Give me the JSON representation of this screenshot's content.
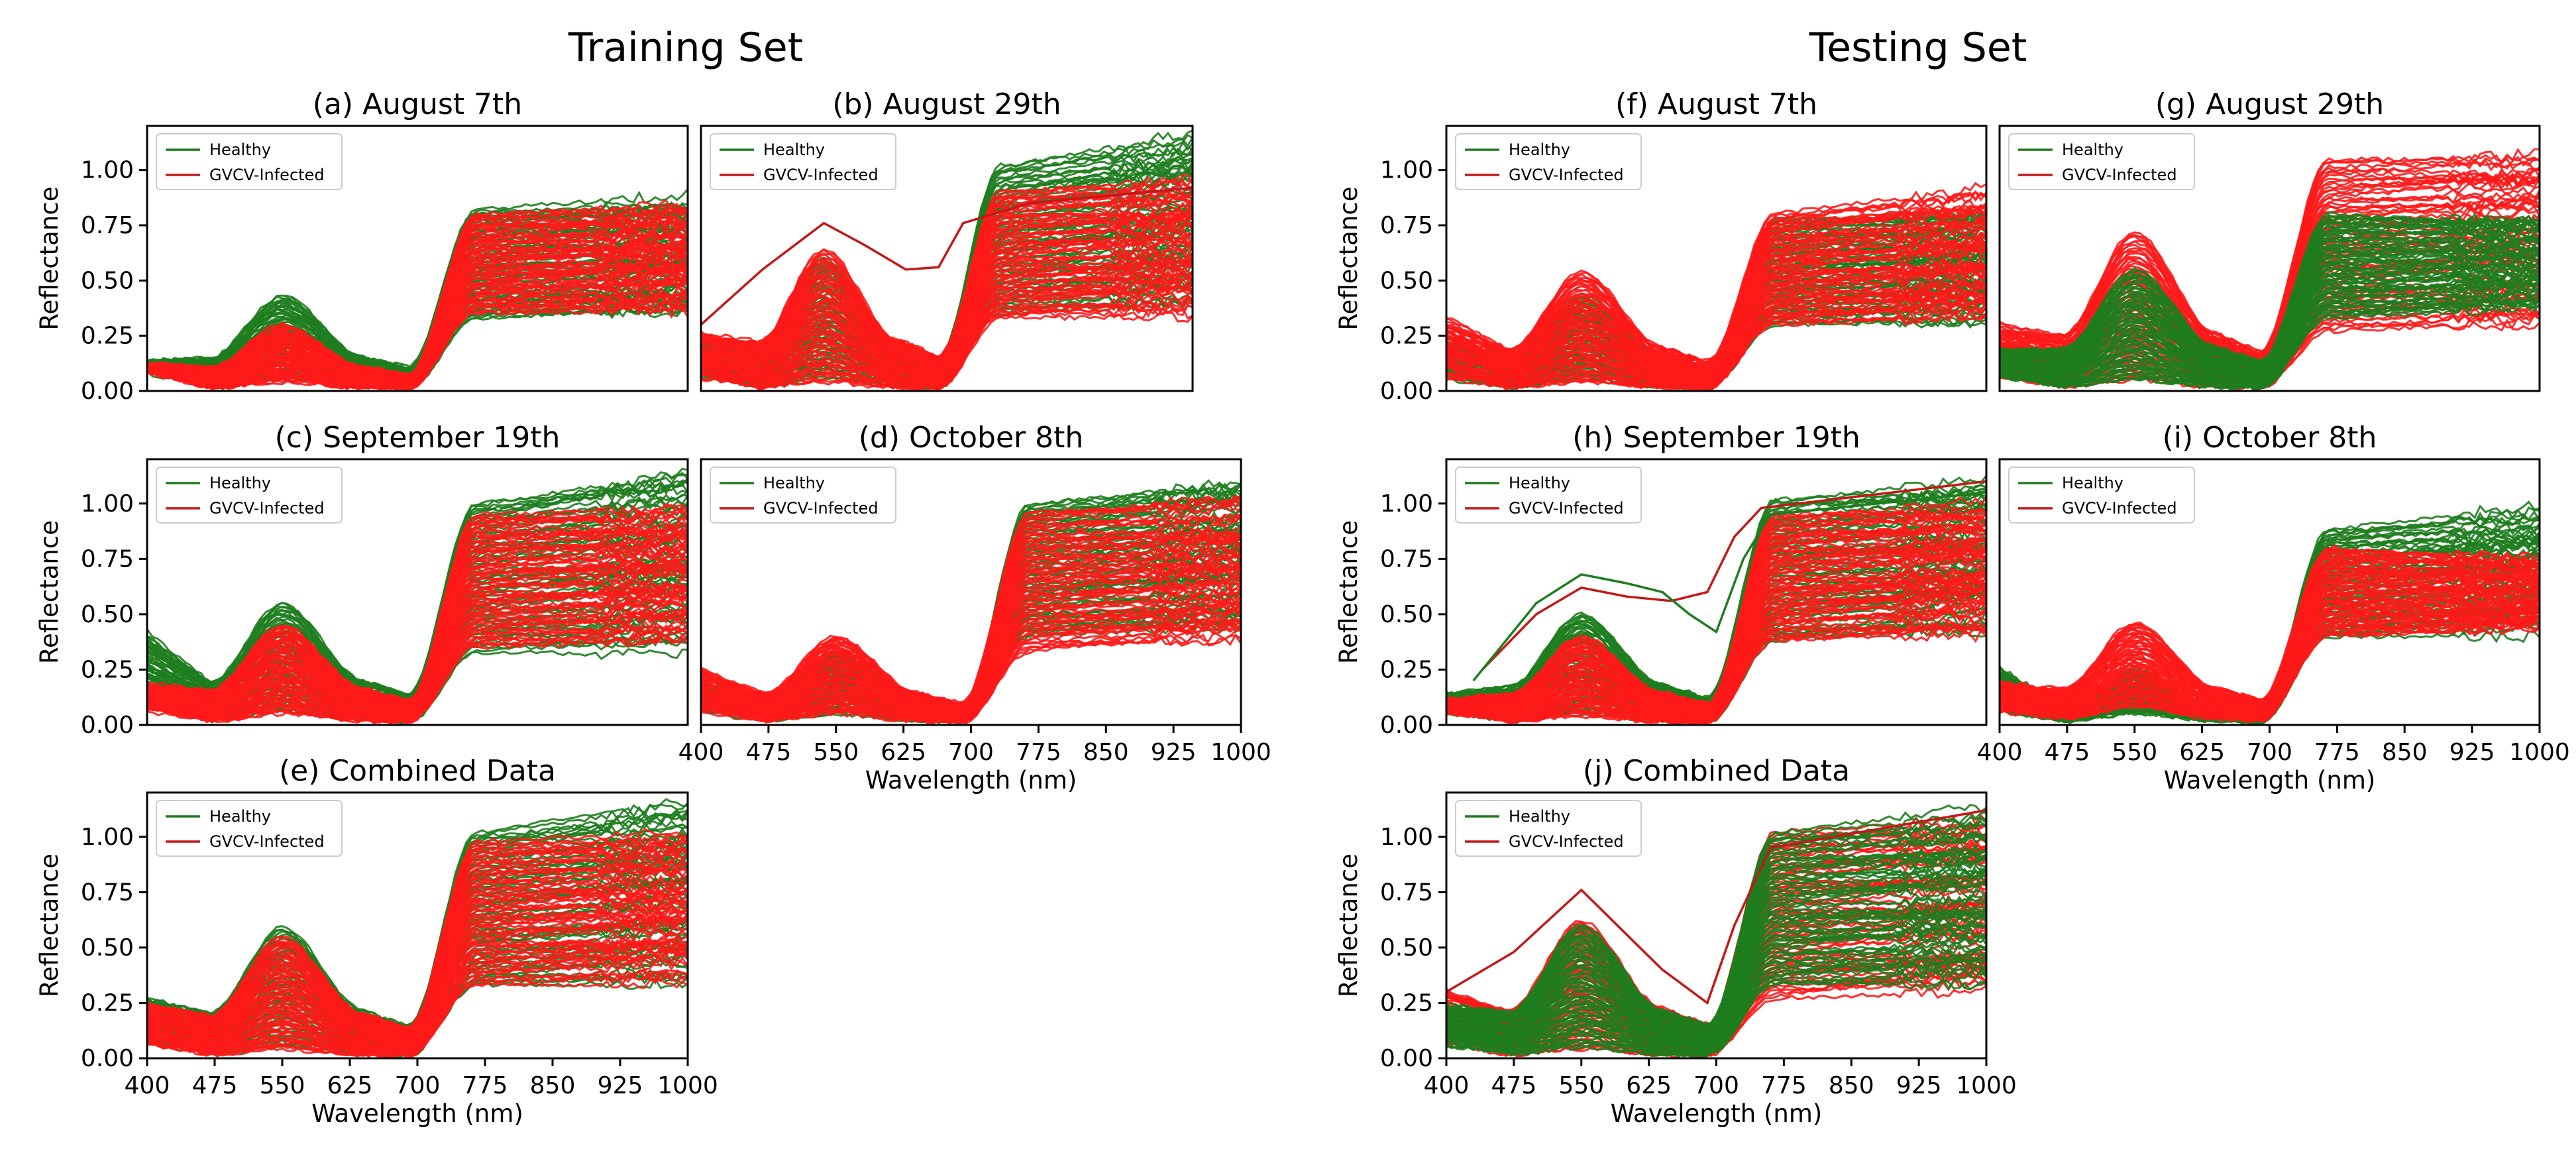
{
  "groups": [
    {
      "title": "Training Set"
    },
    {
      "title": "Testing Set"
    }
  ],
  "colors": {
    "healthy": "#1e7d1e",
    "infected_dense": "#ff1a1a",
    "infected_line": "#c41818"
  },
  "chart_data": [
    {
      "id": "a",
      "group": 0,
      "type": "line",
      "title": "(a) August 7th",
      "xlabel": "",
      "ylabel": "Reflectance",
      "xlim": [
        400,
        1000
      ],
      "ylim": [
        0,
        1.2
      ],
      "xticks": [],
      "yticks": [
        0,
        0.25,
        0.5,
        0.75,
        1.0
      ],
      "yticklabels": [
        "0.00",
        "0.25",
        "0.50",
        "0.75",
        "1.00"
      ],
      "legend": [
        "Healthy",
        "GVCV-Infected"
      ],
      "series": [
        {
          "name": "Healthy",
          "color": "healthy",
          "peak_550_range": [
            0.05,
            0.43
          ],
          "nir_range": [
            0.33,
            0.82
          ],
          "vis_start_range": [
            0.08,
            0.14
          ],
          "nir_end_range": [
            0.3,
            0.92
          ]
        },
        {
          "name": "GVCV-Infected",
          "color": "infected_dense",
          "peak_550_range": [
            0.04,
            0.3
          ],
          "nir_range": [
            0.35,
            0.8
          ],
          "vis_start_range": [
            0.08,
            0.13
          ],
          "nir_end_range": [
            0.35,
            0.86
          ]
        }
      ]
    },
    {
      "id": "b",
      "group": 0,
      "type": "line",
      "title": "(b) August 29th",
      "xlabel": "",
      "ylabel": "",
      "xlim": [
        400,
        1000
      ],
      "ylim": [
        0,
        1.2
      ],
      "xticks": [],
      "yticks": [],
      "legend": [
        "Healthy",
        "GVCV-Infected"
      ],
      "series": [
        {
          "name": "Healthy",
          "color": "healthy",
          "peak_550_range": [
            0.06,
            0.6
          ],
          "nir_range": [
            0.35,
            1.02
          ],
          "vis_start_range": [
            0.05,
            0.25
          ],
          "nir_end_range": [
            0.35,
            1.2
          ]
        },
        {
          "name": "GVCV-Infected",
          "color": "infected_dense",
          "peak_550_range": [
            0.04,
            0.64
          ],
          "nir_range": [
            0.33,
            0.9
          ],
          "vis_start_range": [
            0.05,
            0.27
          ],
          "nir_end_range": [
            0.33,
            0.98
          ]
        },
        {
          "name": "GVCV-Infected outlier",
          "color": "infected_line",
          "outlier": [
            [
              400,
              0.3
            ],
            [
              475,
              0.55
            ],
            [
              550,
              0.76
            ],
            [
              600,
              0.66
            ],
            [
              650,
              0.55
            ],
            [
              690,
              0.56
            ],
            [
              720,
              0.76
            ],
            [
              800,
              0.85
            ],
            [
              1000,
              0.92
            ]
          ]
        }
      ]
    },
    {
      "id": "c",
      "group": 0,
      "type": "line",
      "title": "(c) September 19th",
      "xlabel": "",
      "ylabel": "Reflectance",
      "xlim": [
        400,
        1000
      ],
      "ylim": [
        0,
        1.2
      ],
      "xticks": [],
      "yticks": [
        0,
        0.25,
        0.5,
        0.75,
        1.0
      ],
      "yticklabels": [
        "0.00",
        "0.25",
        "0.50",
        "0.75",
        "1.00"
      ],
      "legend": [
        "Healthy",
        "GVCV-Infected"
      ],
      "series": [
        {
          "name": "Healthy",
          "color": "healthy",
          "peak_550_range": [
            0.06,
            0.55
          ],
          "nir_range": [
            0.33,
            1.0
          ],
          "vis_start_range": [
            0.05,
            0.43
          ],
          "nir_end_range": [
            0.3,
            1.2
          ]
        },
        {
          "name": "GVCV-Infected",
          "color": "infected_dense",
          "peak_550_range": [
            0.05,
            0.45
          ],
          "nir_range": [
            0.35,
            0.95
          ],
          "vis_start_range": [
            0.05,
            0.2
          ],
          "nir_end_range": [
            0.35,
            1.0
          ]
        }
      ]
    },
    {
      "id": "d",
      "group": 0,
      "type": "line",
      "title": "(d) October 8th",
      "xlabel": "Wavelength (nm)",
      "ylabel": "",
      "xlim": [
        400,
        1000
      ],
      "ylim": [
        0,
        1.2
      ],
      "xticks": [
        400,
        475,
        550,
        625,
        700,
        775,
        850,
        925,
        1000
      ],
      "xticklabels": [
        "400",
        "475",
        "550",
        "625",
        "700",
        "775",
        "850",
        "925",
        "1000"
      ],
      "yticks": [],
      "legend": [
        "Healthy",
        "GVCV-Infected"
      ],
      "series": [
        {
          "name": "Healthy",
          "color": "healthy",
          "peak_550_range": [
            0.05,
            0.33
          ],
          "nir_range": [
            0.4,
            1.0
          ],
          "vis_start_range": [
            0.05,
            0.2
          ],
          "nir_end_range": [
            0.4,
            1.15
          ]
        },
        {
          "name": "GVCV-Infected",
          "color": "infected_dense",
          "peak_550_range": [
            0.05,
            0.4
          ],
          "nir_range": [
            0.33,
            0.96
          ],
          "vis_start_range": [
            0.05,
            0.27
          ],
          "nir_end_range": [
            0.35,
            1.05
          ]
        }
      ]
    },
    {
      "id": "e",
      "group": 0,
      "type": "line",
      "title": "(e) Combined Data",
      "xlabel": "Wavelength (nm)",
      "ylabel": "Reflectance",
      "xlim": [
        400,
        1000
      ],
      "ylim": [
        0,
        1.2
      ],
      "xticks": [
        400,
        475,
        550,
        625,
        700,
        775,
        850,
        925,
        1000
      ],
      "xticklabels": [
        "400",
        "475",
        "550",
        "625",
        "700",
        "775",
        "850",
        "925",
        "1000"
      ],
      "yticks": [
        0,
        0.25,
        0.5,
        0.75,
        1.0
      ],
      "yticklabels": [
        "0.00",
        "0.25",
        "0.50",
        "0.75",
        "1.00"
      ],
      "legend": [
        "Healthy",
        "GVCV-Infected"
      ],
      "series": [
        {
          "name": "Healthy",
          "color": "healthy",
          "peak_550_range": [
            0.05,
            0.59
          ],
          "nir_range": [
            0.33,
            1.02
          ],
          "vis_start_range": [
            0.05,
            0.28
          ],
          "nir_end_range": [
            0.3,
            1.2
          ]
        },
        {
          "name": "GVCV-Infected",
          "color": "infected_dense",
          "peak_550_range": [
            0.04,
            0.55
          ],
          "nir_range": [
            0.33,
            0.98
          ],
          "vis_start_range": [
            0.05,
            0.27
          ],
          "nir_end_range": [
            0.33,
            1.05
          ]
        }
      ]
    },
    {
      "id": "f",
      "group": 1,
      "type": "line",
      "title": "(f) August 7th",
      "xlabel": "",
      "ylabel": "Reflectance",
      "xlim": [
        400,
        1000
      ],
      "ylim": [
        0,
        1.2
      ],
      "xticks": [],
      "yticks": [
        0,
        0.25,
        0.5,
        0.75,
        1.0
      ],
      "yticklabels": [
        "0.00",
        "0.25",
        "0.50",
        "0.75",
        "1.00"
      ],
      "legend": [
        "Healthy",
        "GVCV-Infected"
      ],
      "series": [
        {
          "name": "Healthy",
          "color": "healthy",
          "peak_550_range": [
            0.05,
            0.43
          ],
          "nir_range": [
            0.3,
            0.78
          ],
          "vis_start_range": [
            0.05,
            0.25
          ],
          "nir_end_range": [
            0.3,
            0.85
          ]
        },
        {
          "name": "GVCV-Infected",
          "color": "infected_dense",
          "peak_550_range": [
            0.04,
            0.54
          ],
          "nir_range": [
            0.3,
            0.8
          ],
          "vis_start_range": [
            0.05,
            0.35
          ],
          "nir_end_range": [
            0.3,
            0.93
          ]
        }
      ]
    },
    {
      "id": "g",
      "group": 1,
      "type": "line",
      "title": "(g) August 29th",
      "xlabel": "",
      "ylabel": "",
      "xlim": [
        400,
        1000
      ],
      "ylim": [
        0,
        1.2
      ],
      "xticks": [],
      "yticks": [],
      "legend": [
        "Healthy",
        "GVCV-Infected"
      ],
      "series": [
        {
          "name": "GVCV-Infected",
          "color": "infected_dense",
          "peak_550_range": [
            0.05,
            0.72
          ],
          "nir_range": [
            0.27,
            1.05
          ],
          "vis_start_range": [
            0.05,
            0.32
          ],
          "nir_end_range": [
            0.25,
            1.15
          ]
        },
        {
          "name": "Healthy",
          "color": "healthy",
          "peak_550_range": [
            0.05,
            0.55
          ],
          "nir_range": [
            0.33,
            0.8
          ],
          "vis_start_range": [
            0.05,
            0.2
          ],
          "nir_end_range": [
            0.35,
            0.82
          ]
        }
      ]
    },
    {
      "id": "h",
      "group": 1,
      "type": "line",
      "title": "(h) September 19th",
      "xlabel": "",
      "ylabel": "Reflectance",
      "xlim": [
        400,
        1000
      ],
      "ylim": [
        0,
        1.2
      ],
      "xticks": [],
      "yticks": [
        0,
        0.25,
        0.5,
        0.75,
        1.0
      ],
      "yticklabels": [
        "0.00",
        "0.25",
        "0.50",
        "0.75",
        "1.00"
      ],
      "legend": [
        "Healthy",
        "GVCV-Infected"
      ],
      "series": [
        {
          "name": "Healthy",
          "color": "healthy",
          "peak_550_range": [
            0.05,
            0.5
          ],
          "nir_range": [
            0.38,
            1.02
          ],
          "vis_start_range": [
            0.05,
            0.15
          ],
          "nir_end_range": [
            0.38,
            1.15
          ]
        },
        {
          "name": "GVCV-Infected",
          "color": "infected_dense",
          "peak_550_range": [
            0.04,
            0.4
          ],
          "nir_range": [
            0.38,
            0.95
          ],
          "vis_start_range": [
            0.05,
            0.12
          ],
          "nir_end_range": [
            0.38,
            1.05
          ]
        },
        {
          "name": "GVCV-Infected outlier",
          "color": "infected_line",
          "outlier": [
            [
              440,
              0.25
            ],
            [
              500,
              0.5
            ],
            [
              550,
              0.62
            ],
            [
              600,
              0.58
            ],
            [
              650,
              0.56
            ],
            [
              690,
              0.6
            ],
            [
              720,
              0.85
            ],
            [
              750,
              0.98
            ],
            [
              1000,
              1.1
            ]
          ]
        },
        {
          "name": "Healthy outlier",
          "color": "healthy",
          "outlier": [
            [
              430,
              0.2
            ],
            [
              500,
              0.55
            ],
            [
              550,
              0.68
            ],
            [
              600,
              0.64
            ],
            [
              640,
              0.6
            ],
            [
              670,
              0.5
            ],
            [
              700,
              0.42
            ],
            [
              730,
              0.75
            ],
            [
              760,
              0.95
            ],
            [
              1000,
              1.05
            ]
          ]
        }
      ]
    },
    {
      "id": "i",
      "group": 1,
      "type": "line",
      "title": "(i) October 8th",
      "xlabel": "Wavelength (nm)",
      "ylabel": "",
      "xlim": [
        400,
        1000
      ],
      "ylim": [
        0,
        1.2
      ],
      "xticks": [
        400,
        475,
        550,
        625,
        700,
        775,
        850,
        925,
        1000
      ],
      "xticklabels": [
        "400",
        "475",
        "550",
        "625",
        "700",
        "775",
        "850",
        "925",
        "1000"
      ],
      "yticks": [],
      "legend": [
        "Healthy",
        "GVCV-Infected"
      ],
      "series": [
        {
          "name": "Healthy",
          "color": "healthy",
          "peak_550_range": [
            0.05,
            0.25
          ],
          "nir_range": [
            0.4,
            0.88
          ],
          "vis_start_range": [
            0.05,
            0.27
          ],
          "nir_end_range": [
            0.4,
            1.0
          ]
        },
        {
          "name": "GVCV-Infected",
          "color": "infected_dense",
          "peak_550_range": [
            0.08,
            0.46
          ],
          "nir_range": [
            0.4,
            0.8
          ],
          "vis_start_range": [
            0.05,
            0.2
          ],
          "nir_end_range": [
            0.4,
            0.78
          ]
        }
      ]
    },
    {
      "id": "j",
      "group": 1,
      "type": "line",
      "title": "(j) Combined Data",
      "xlabel": "Wavelength (nm)",
      "ylabel": "Reflectance",
      "xlim": [
        400,
        1000
      ],
      "ylim": [
        0,
        1.2
      ],
      "xticks": [
        400,
        475,
        550,
        625,
        700,
        775,
        850,
        925,
        1000
      ],
      "xticklabels": [
        "400",
        "475",
        "550",
        "625",
        "700",
        "775",
        "850",
        "925",
        "1000"
      ],
      "yticks": [
        0,
        0.25,
        0.5,
        0.75,
        1.0
      ],
      "yticklabels": [
        "0.00",
        "0.25",
        "0.50",
        "0.75",
        "1.00"
      ],
      "legend": [
        "Healthy",
        "GVCV-Infected"
      ],
      "series": [
        {
          "name": "GVCV-Infected",
          "color": "infected_dense",
          "peak_550_range": [
            0.04,
            0.62
          ],
          "nir_range": [
            0.27,
            1.02
          ],
          "vis_start_range": [
            0.05,
            0.33
          ],
          "nir_end_range": [
            0.27,
            1.12
          ]
        },
        {
          "name": "Healthy",
          "color": "healthy",
          "peak_550_range": [
            0.05,
            0.6
          ],
          "nir_range": [
            0.33,
            1.02
          ],
          "vis_start_range": [
            0.05,
            0.25
          ],
          "nir_end_range": [
            0.3,
            1.15
          ]
        },
        {
          "name": "GVCV-Infected outlier",
          "color": "infected_line",
          "outlier": [
            [
              400,
              0.3
            ],
            [
              475,
              0.48
            ],
            [
              550,
              0.76
            ],
            [
              600,
              0.56
            ],
            [
              640,
              0.4
            ],
            [
              690,
              0.25
            ],
            [
              720,
              0.6
            ],
            [
              760,
              0.95
            ],
            [
              1000,
              1.12
            ]
          ]
        }
      ]
    }
  ]
}
